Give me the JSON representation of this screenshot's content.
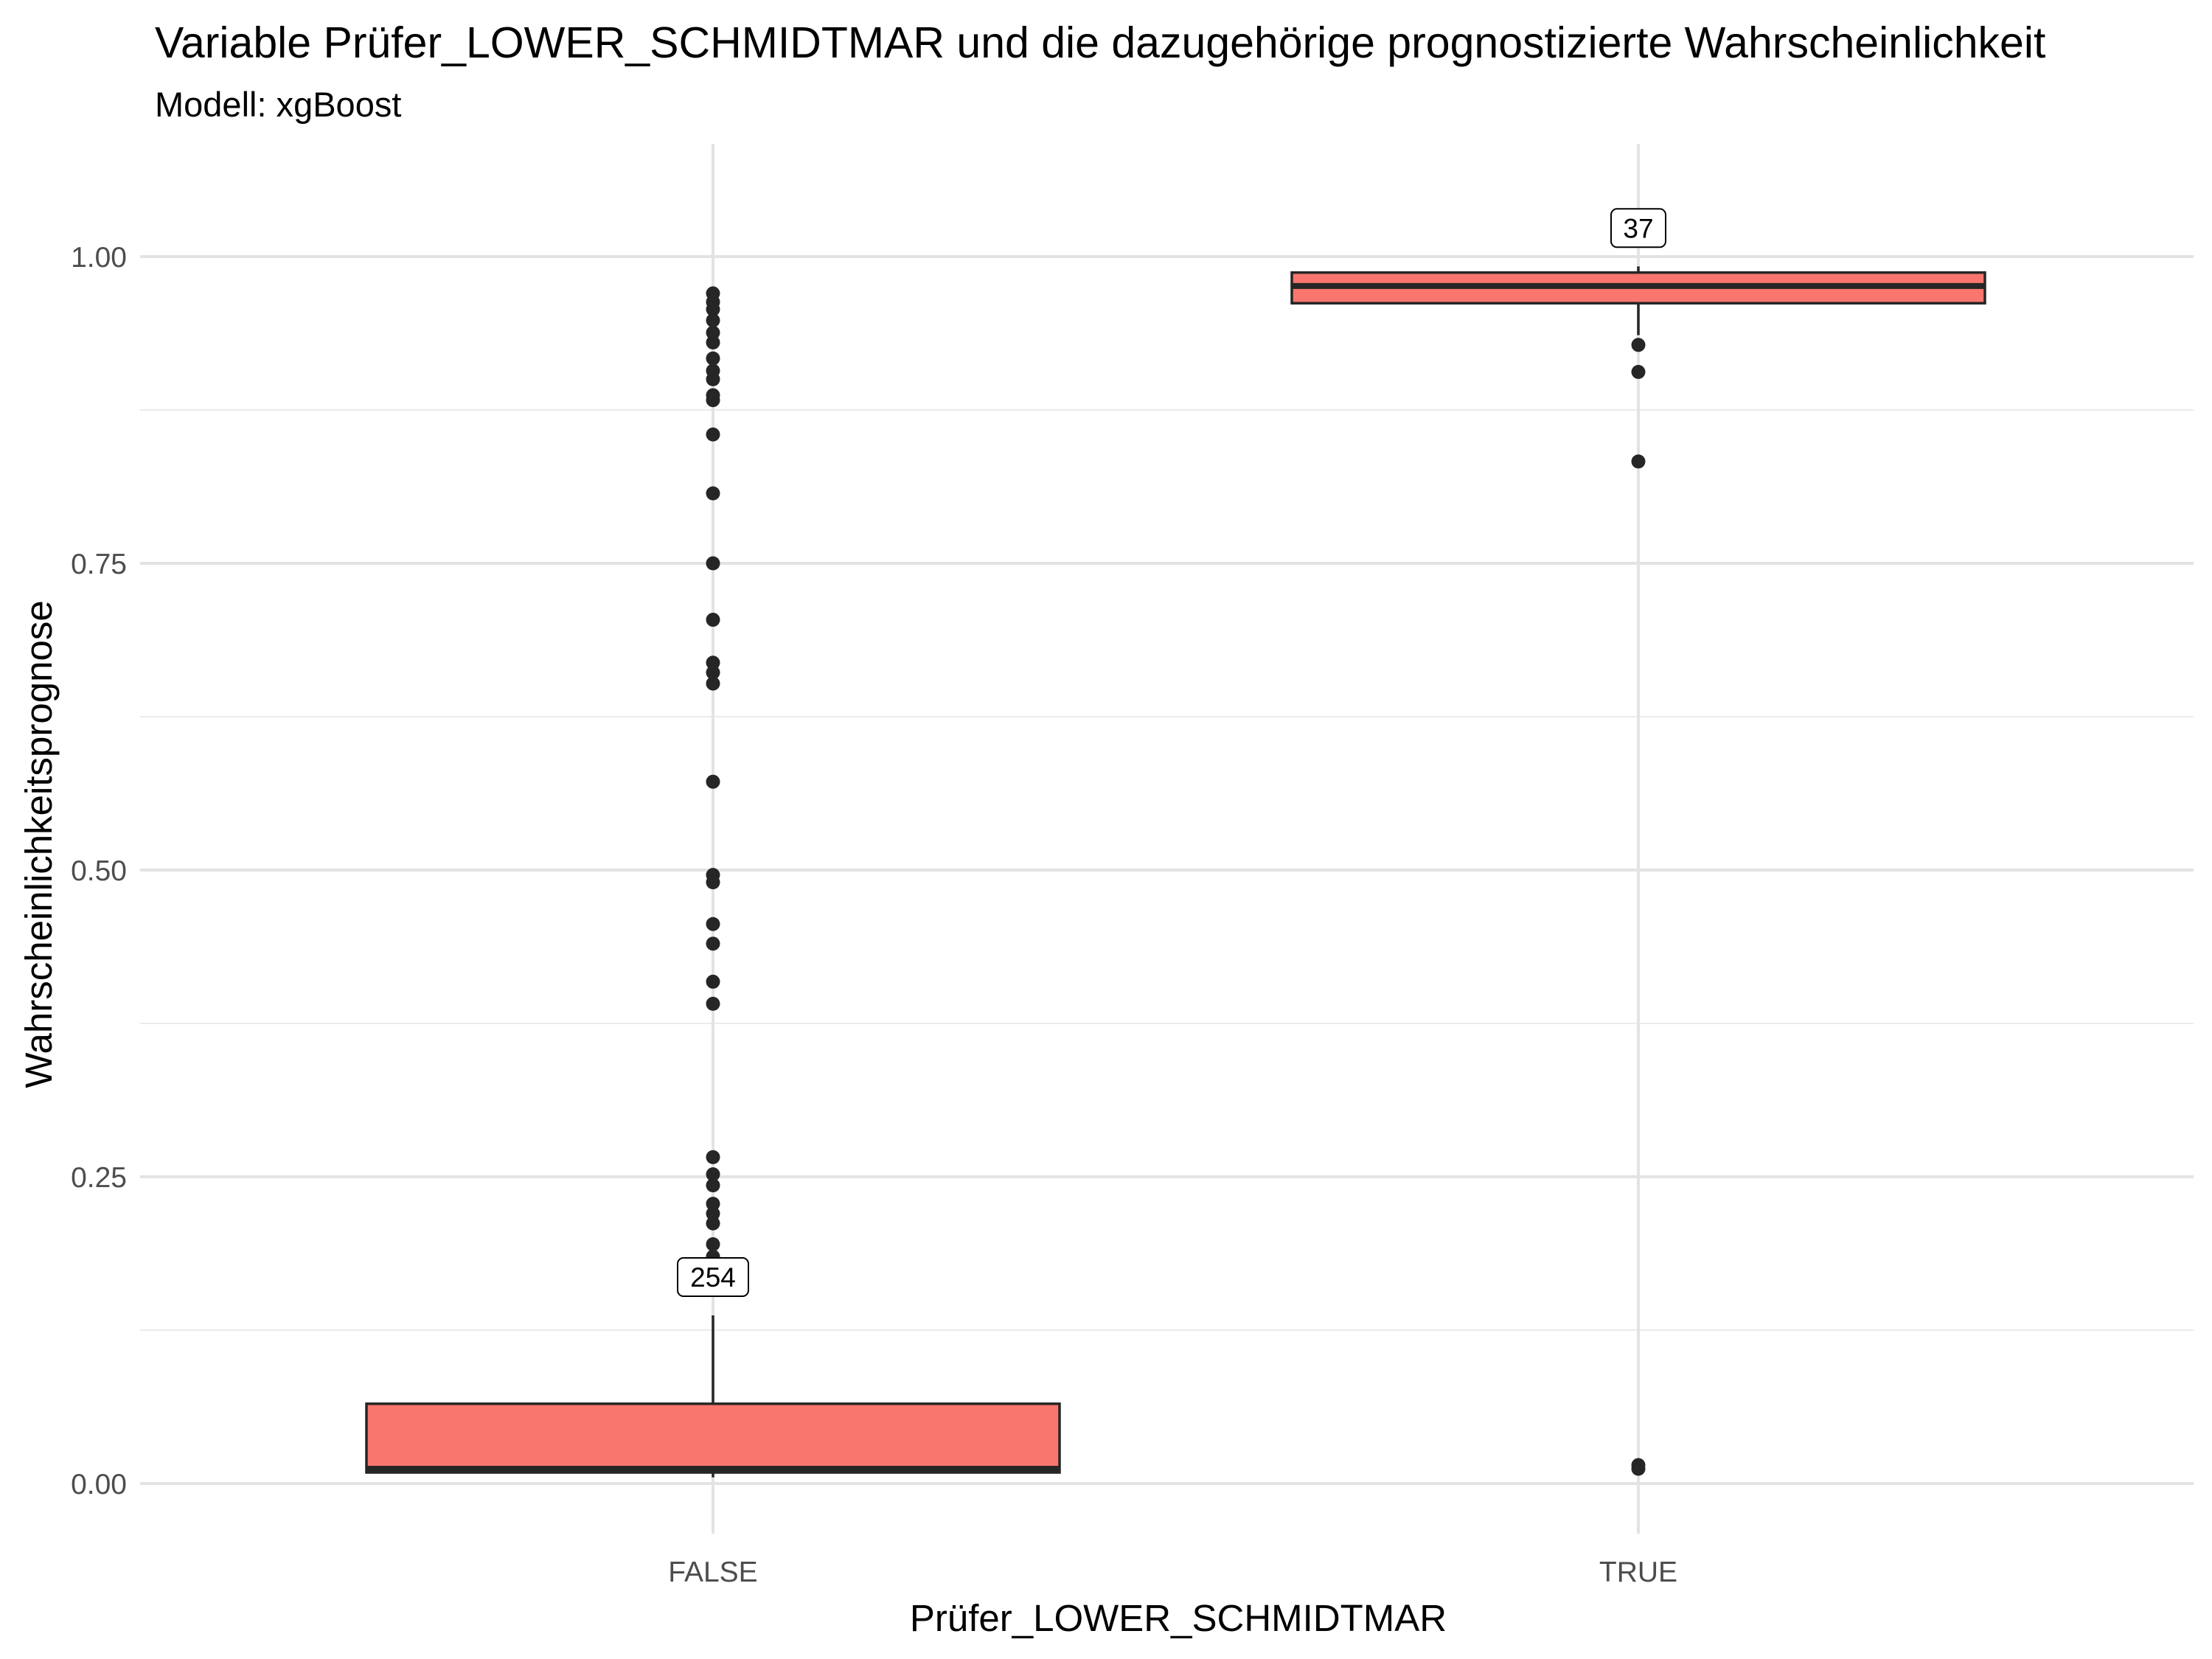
{
  "chart_data": {
    "type": "box",
    "title": "Variable Prüfer_LOWER_SCHMIDTMAR und die dazugehörige prognostizierte Wahrscheinlichkeit",
    "subtitle": "Modell: xgBoost",
    "xlabel": "Prüfer_LOWER_SCHMIDTMAR",
    "ylabel": "Wahrscheinlichkeitsprognose",
    "ylim": [
      -0.04,
      1.09
    ],
    "yticks": [
      0.0,
      0.25,
      0.5,
      0.75,
      1.0
    ],
    "ytick_labels": [
      "0.00",
      "0.25",
      "0.50",
      "0.75",
      "1.00"
    ],
    "grid": true,
    "box_color": "#F8766D",
    "categories": [
      "FALSE",
      "TRUE"
    ],
    "boxes": [
      {
        "category": "FALSE",
        "count_label": "254",
        "min": 0.005,
        "q1": 0.009,
        "median": 0.012,
        "q3": 0.065,
        "max": 0.137,
        "outliers": [
          0.97,
          0.963,
          0.957,
          0.948,
          0.938,
          0.93,
          0.917,
          0.907,
          0.9,
          0.887,
          0.883,
          0.855,
          0.807,
          0.75,
          0.704,
          0.669,
          0.661,
          0.652,
          0.572,
          0.496,
          0.49,
          0.456,
          0.44,
          0.409,
          0.391,
          0.266,
          0.252,
          0.243,
          0.228,
          0.22,
          0.212,
          0.195,
          0.185
        ]
      },
      {
        "category": "TRUE",
        "count_label": "37",
        "min": 0.936,
        "q1": 0.962,
        "median": 0.976,
        "q3": 0.987,
        "max": 0.992,
        "outliers": [
          0.928,
          0.906,
          0.833,
          0.015,
          0.012
        ]
      }
    ]
  }
}
